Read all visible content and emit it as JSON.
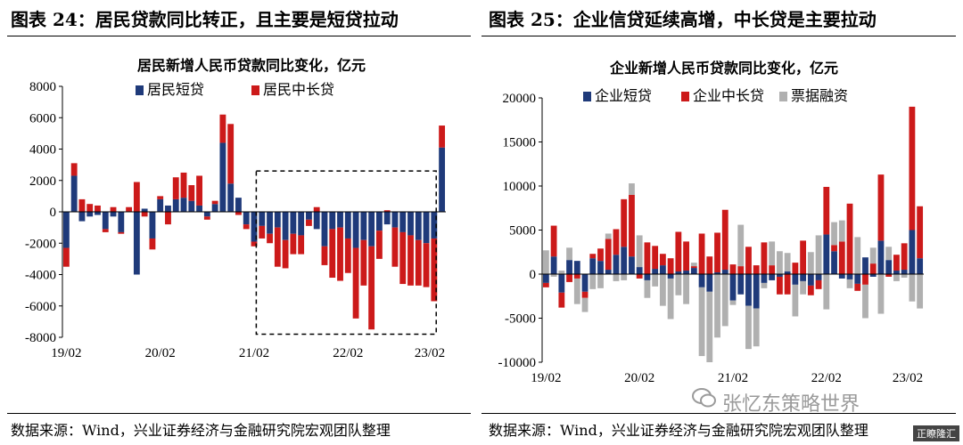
{
  "header": {
    "left_title": "图表 24：居民贷款同比转正，且主要是短贷拉动",
    "right_title": "图表 25：企业信贷延续高增，中长贷是主要拉动"
  },
  "footer": {
    "left_source": "数据来源：Wind，兴业证券经济与金融研究院宏观团队整理",
    "right_source": "数据来源：Wind，兴业证券经济与金融研究院宏观团队整理"
  },
  "watermark": {
    "text": "张忆东策略世界",
    "corner": "正瞭隆汇"
  },
  "colors": {
    "navy": "#1f3a7a",
    "red": "#cc1a1a",
    "gray": "#b0b0b0"
  },
  "chart_data": [
    {
      "type": "bar",
      "stacked": true,
      "title": "居民新增人民币贷款同比变化，亿元",
      "xlabel": "",
      "ylabel": "",
      "ylim": [
        -8000,
        8000
      ],
      "yticks": [
        -8000,
        -6000,
        -4000,
        -2000,
        0,
        2000,
        4000,
        6000,
        8000
      ],
      "xtick_labels": [
        {
          "index": 0,
          "label": "19/02"
        },
        {
          "index": 12,
          "label": "20/02"
        },
        {
          "index": 24,
          "label": "21/02"
        },
        {
          "index": 36,
          "label": "22/02"
        },
        {
          "index": 48,
          "label": "23/02"
        }
      ],
      "legend_position": "top-center",
      "annotation": "dashed rectangle highlighting 21/03–23/01",
      "series": [
        {
          "name": "居民短贷",
          "color": "#1f3a7a",
          "values": [
            -2300,
            2300,
            -600,
            -300,
            -200,
            -1100,
            -300,
            -1300,
            0,
            -4000,
            200,
            -1700,
            800,
            400,
            800,
            900,
            700,
            400,
            -300,
            500,
            4400,
            1800,
            900,
            -800,
            -1900,
            -900,
            -1400,
            -1000,
            -1800,
            -1400,
            -1500,
            -500,
            -1100,
            -2200,
            -1100,
            -1000,
            -1700,
            -2300,
            -1800,
            -2200,
            -1200,
            -800,
            -1000,
            -1300,
            -1500,
            -1800,
            -2000,
            -1700,
            4100
          ]
        },
        {
          "name": "居民中长贷",
          "color": "#cc1a1a",
          "values": [
            -1200,
            800,
            800,
            500,
            400,
            -200,
            300,
            -100,
            300,
            1900,
            -300,
            -700,
            200,
            -800,
            1400,
            1600,
            1000,
            1900,
            -200,
            200,
            1800,
            3800,
            -200,
            -300,
            -300,
            -800,
            -600,
            -2500,
            -1800,
            -1300,
            -1200,
            -400,
            300,
            -1200,
            -3100,
            -3400,
            -2200,
            -4500,
            -2900,
            -5300,
            -1800,
            100,
            -2500,
            -3300,
            -3200,
            -2900,
            -2800,
            -4000,
            1400
          ]
        }
      ]
    },
    {
      "type": "bar",
      "stacked": true,
      "title": "企业新增人民币贷款同比变化，亿元",
      "xlabel": "",
      "ylabel": "",
      "ylim": [
        -10000,
        20000
      ],
      "yticks": [
        -10000,
        -5000,
        0,
        5000,
        10000,
        15000,
        20000
      ],
      "xtick_labels": [
        {
          "index": 0,
          "label": "19/02"
        },
        {
          "index": 12,
          "label": "20/02"
        },
        {
          "index": 24,
          "label": "21/02"
        },
        {
          "index": 36,
          "label": "22/02"
        },
        {
          "index": 48,
          "label": "23/02"
        }
      ],
      "legend_position": "top-center",
      "series": [
        {
          "name": "企业短贷",
          "color": "#1f3a7a",
          "values": [
            -1000,
            2000,
            -2100,
            1600,
            1500,
            -2000,
            1800,
            1500,
            500,
            2200,
            3100,
            2000,
            800,
            -700,
            600,
            1000,
            -500,
            300,
            400,
            700,
            -1500,
            -2000,
            200,
            500,
            -3000,
            -2300,
            -3600,
            -3900,
            -1000,
            -700,
            -300,
            300,
            -1200,
            -800,
            -1300,
            -700,
            4500,
            2600,
            -500,
            -600,
            -1100,
            1900,
            -300,
            3800,
            1600,
            400,
            500,
            5000,
            1800
          ]
        },
        {
          "name": "企业中长贷",
          "color": "#cc1a1a",
          "values": [
            -500,
            3500,
            -1700,
            -900,
            -500,
            -700,
            500,
            1400,
            3500,
            2900,
            5400,
            7000,
            -500,
            3600,
            2600,
            1300,
            1800,
            4500,
            3300,
            200,
            4600,
            2000,
            4500,
            6800,
            1100,
            900,
            3100,
            1000,
            3600,
            1000,
            -2000,
            -2300,
            1300,
            3800,
            -1100,
            -1000,
            5400,
            700,
            3700,
            8000,
            -800,
            -1200,
            1200,
            7500,
            -300,
            1800,
            3000,
            14000,
            5900
          ]
        },
        {
          "name": "票据融资",
          "color": "#b0b0b0",
          "values": [
            2700,
            -300,
            400,
            1400,
            -2900,
            -1600,
            -1700,
            -1600,
            600,
            -800,
            -700,
            1300,
            3600,
            -2000,
            -1400,
            -3600,
            -4600,
            -2400,
            -3400,
            400,
            -7800,
            -8000,
            -7200,
            -5900,
            -500,
            4700,
            -4900,
            -4300,
            -600,
            2700,
            2600,
            2100,
            -3600,
            -1500,
            2500,
            4400,
            -4000,
            2600,
            2400,
            -1000,
            4200,
            -3800,
            1800,
            -4500,
            1500,
            -800,
            -400,
            -3100,
            -3900
          ]
        }
      ]
    }
  ]
}
